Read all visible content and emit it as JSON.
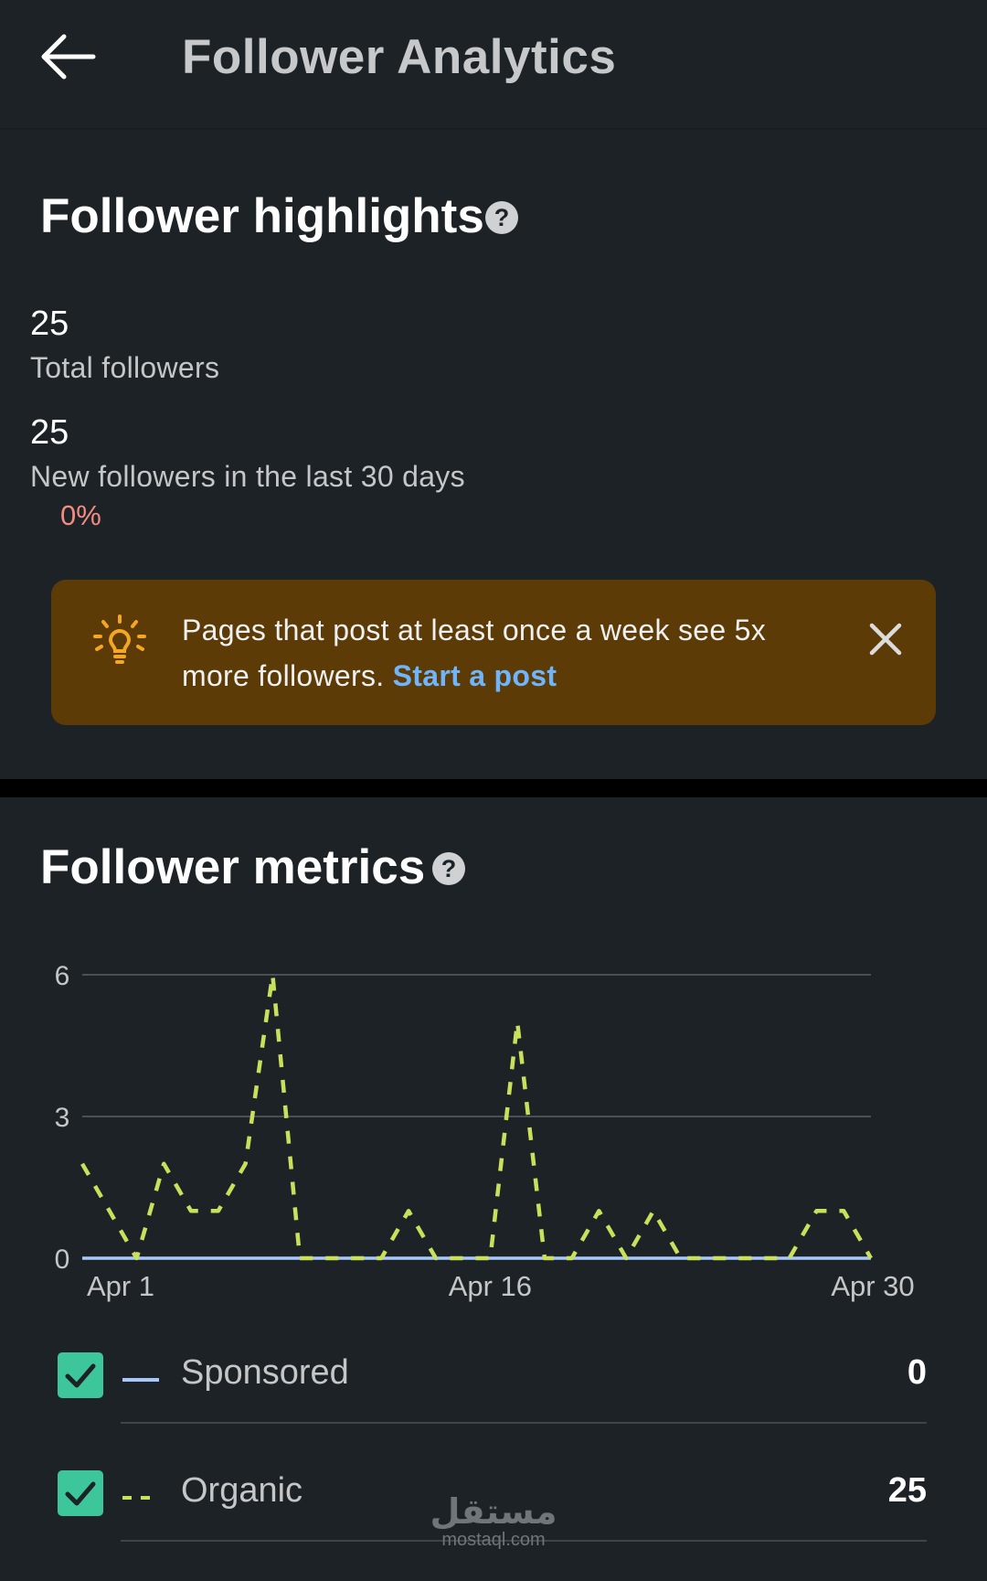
{
  "header": {
    "title": "Follower Analytics"
  },
  "highlights": {
    "title": "Follower highlights",
    "help_glyph": "?",
    "total_followers": {
      "value": "25",
      "label": "Total followers"
    },
    "new_followers": {
      "value": "25",
      "label": "New followers in the last 30 days",
      "change": "0%"
    }
  },
  "tip": {
    "text": "Pages that post at least once a week see 5x more followers.",
    "link_label": "Start a post",
    "icon": "lightbulb-icon"
  },
  "metrics": {
    "title": "Follower metrics",
    "help_glyph": "?"
  },
  "chart_data": {
    "type": "line",
    "x": [
      "Apr 1",
      "Apr 2",
      "Apr 3",
      "Apr 4",
      "Apr 5",
      "Apr 6",
      "Apr 7",
      "Apr 8",
      "Apr 9",
      "Apr 10",
      "Apr 11",
      "Apr 12",
      "Apr 13",
      "Apr 14",
      "Apr 15",
      "Apr 16",
      "Apr 17",
      "Apr 18",
      "Apr 19",
      "Apr 20",
      "Apr 21",
      "Apr 22",
      "Apr 23",
      "Apr 24",
      "Apr 25",
      "Apr 26",
      "Apr 27",
      "Apr 28",
      "Apr 29",
      "Apr 30"
    ],
    "x_tick_labels": [
      "Apr 1",
      "Apr 16",
      "Apr 30"
    ],
    "y_ticks": [
      "0",
      "3",
      "6"
    ],
    "ylim": [
      0,
      6
    ],
    "grid": true,
    "series": [
      {
        "name": "Sponsored",
        "color": "#a8c7fa",
        "dashed": false,
        "values": [
          0,
          0,
          0,
          0,
          0,
          0,
          0,
          0,
          0,
          0,
          0,
          0,
          0,
          0,
          0,
          0,
          0,
          0,
          0,
          0,
          0,
          0,
          0,
          0,
          0,
          0,
          0,
          0,
          0,
          0
        ]
      },
      {
        "name": "Organic",
        "color": "#c8e05c",
        "dashed": true,
        "values": [
          2,
          1,
          0,
          2,
          1,
          1,
          2,
          6,
          0,
          0,
          0,
          0,
          1,
          0,
          0,
          0,
          5,
          0,
          0,
          1,
          0,
          1,
          0,
          0,
          0,
          0,
          0,
          1,
          1,
          0
        ]
      }
    ]
  },
  "legend": [
    {
      "label": "Sponsored",
      "value": "0"
    },
    {
      "label": "Organic",
      "value": "25"
    }
  ],
  "watermark": {
    "arabic": "مستقل",
    "latin": "mostaql.com"
  }
}
